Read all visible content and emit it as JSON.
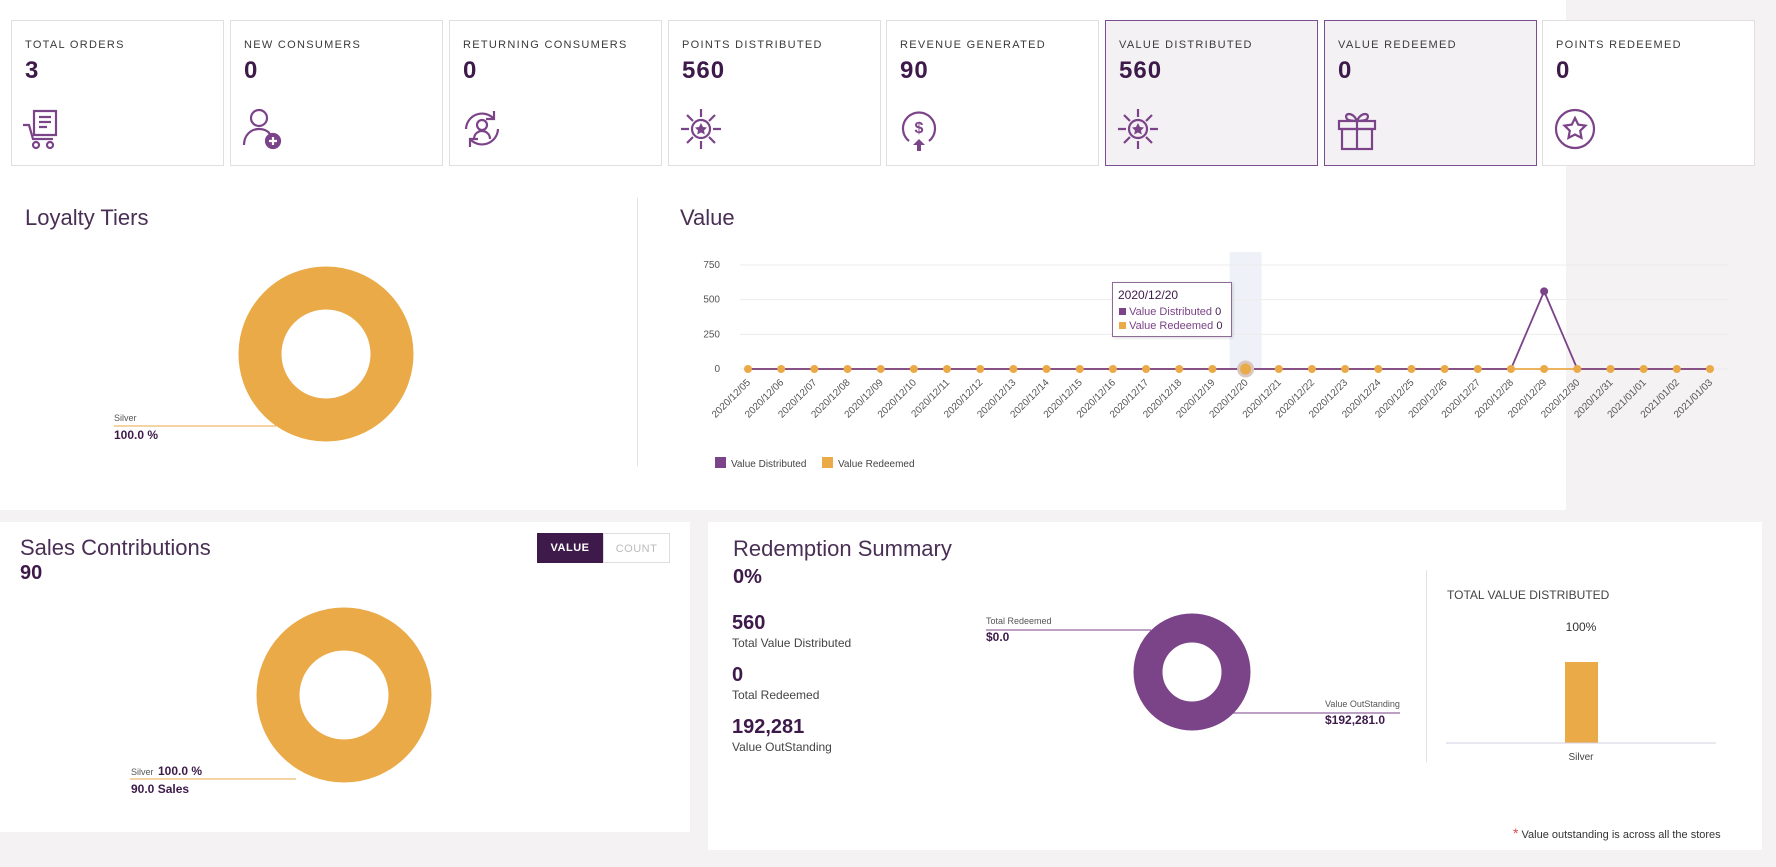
{
  "kpis": [
    {
      "label": "TOTAL ORDERS",
      "value": "3",
      "icon": "cart-receipt-icon",
      "selected": false
    },
    {
      "label": "NEW CONSUMERS",
      "value": "0",
      "icon": "add-user-icon",
      "selected": false
    },
    {
      "label": "RETURNING CONSUMERS",
      "value": "0",
      "icon": "returning-user-icon",
      "selected": false
    },
    {
      "label": "POINTS DISTRIBUTED",
      "value": "560",
      "icon": "distribute-star-icon",
      "selected": false
    },
    {
      "label": "REVENUE GENERATED",
      "value": "90",
      "icon": "dollar-revenue-icon",
      "selected": false
    },
    {
      "label": "VALUE DISTRIBUTED",
      "value": "560",
      "icon": "distribute-star-icon",
      "selected": true
    },
    {
      "label": "VALUE REDEEMED",
      "value": "0",
      "icon": "gift-icon",
      "selected": true
    },
    {
      "label": "POINTS REDEEMED",
      "value": "0",
      "icon": "star-circle-icon",
      "selected": false
    }
  ],
  "loyalty": {
    "title": "Loyalty Tiers",
    "slice_label": "Silver",
    "slice_pct": "100.0 %",
    "chart_data": {
      "type": "pie",
      "categories": [
        "Silver"
      ],
      "values": [
        100.0
      ]
    }
  },
  "value_chart": {
    "title": "Value",
    "tooltip": {
      "date": "2020/12/20",
      "rows": [
        {
          "name": "Value Distributed",
          "value": "0"
        },
        {
          "name": "Value Redeemed",
          "value": "0"
        }
      ]
    },
    "chart_data": {
      "type": "line",
      "x": [
        "2020/12/05",
        "2020/12/06",
        "2020/12/07",
        "2020/12/08",
        "2020/12/09",
        "2020/12/10",
        "2020/12/11",
        "2020/12/12",
        "2020/12/13",
        "2020/12/14",
        "2020/12/15",
        "2020/12/16",
        "2020/12/17",
        "2020/12/18",
        "2020/12/19",
        "2020/12/20",
        "2020/12/21",
        "2020/12/22",
        "2020/12/23",
        "2020/12/24",
        "2020/12/25",
        "2020/12/26",
        "2020/12/27",
        "2020/12/28",
        "2020/12/29",
        "2020/12/30",
        "2020/12/31",
        "2021/01/01",
        "2021/01/02",
        "2021/01/03"
      ],
      "series": [
        {
          "name": "Value Distributed",
          "color": "#7b4388",
          "values": [
            0,
            0,
            0,
            0,
            0,
            0,
            0,
            0,
            0,
            0,
            0,
            0,
            0,
            0,
            0,
            0,
            0,
            0,
            0,
            0,
            0,
            0,
            0,
            0,
            560,
            0,
            0,
            0,
            0,
            0
          ]
        },
        {
          "name": "Value Redeemed",
          "color": "#eaaa48",
          "values": [
            0,
            0,
            0,
            0,
            0,
            0,
            0,
            0,
            0,
            0,
            0,
            0,
            0,
            0,
            0,
            0,
            0,
            0,
            0,
            0,
            0,
            0,
            0,
            0,
            0,
            0,
            0,
            0,
            0,
            0
          ]
        }
      ],
      "yticks": [
        "750",
        "500",
        "250",
        "0"
      ],
      "ylim": [
        0,
        750
      ],
      "grid": true,
      "legend": "bottom-left",
      "highlight": "2020/12/20"
    }
  },
  "sales": {
    "title": "Sales Contributions",
    "total": "90",
    "toggle_value": "VALUE",
    "toggle_count": "COUNT",
    "slice_label": "Silver",
    "slice_pct": "100.0 %",
    "slice_sales": "90.0 Sales",
    "chart_data": {
      "type": "pie",
      "categories": [
        "Silver"
      ],
      "values": [
        100.0
      ]
    }
  },
  "redemption": {
    "title": "Redemption Summary",
    "pct": "0%",
    "stats": [
      {
        "value": "560",
        "label": "Total Value Distributed"
      },
      {
        "value": "0",
        "label": "Total Redeemed"
      },
      {
        "value": "192,281",
        "label": "Value OutStanding"
      }
    ],
    "donut_labels": {
      "redeemed_label": "Total Redeemed",
      "redeemed_value": "$0.0",
      "outstanding_label": "Value OutStanding",
      "outstanding_value": "$192,281.0"
    },
    "donut_chart": {
      "type": "pie",
      "categories": [
        "Total Redeemed",
        "Value OutStanding"
      ],
      "values": [
        0.0,
        192281.0
      ]
    },
    "bar_title": "TOTAL VALUE DISTRIBUTED",
    "bar_chart": {
      "type": "bar",
      "categories": [
        "Silver"
      ],
      "values": [
        100
      ],
      "data_labels": [
        "100%"
      ]
    },
    "footnote": "Value outstanding is across all the stores",
    "footnote_mark": "*"
  },
  "colors": {
    "accent": "#3d1a4a",
    "purple": "#7b4388",
    "orange": "#eaaa48"
  }
}
